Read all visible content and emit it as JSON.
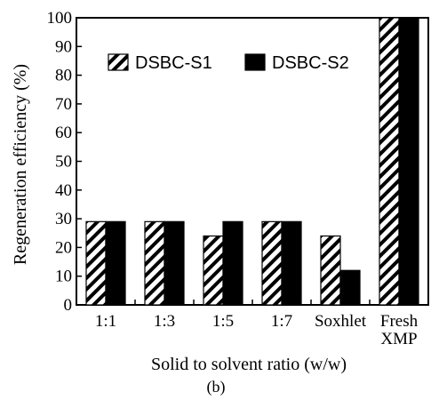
{
  "chart_data": {
    "type": "bar",
    "categories": [
      [
        "1:1"
      ],
      [
        "1:3"
      ],
      [
        "1:5"
      ],
      [
        "1:7"
      ],
      [
        "Soxhlet"
      ],
      [
        "Fresh",
        "XMP"
      ]
    ],
    "series": [
      {
        "name": "DSBC-S1",
        "values": [
          29,
          29,
          24,
          29,
          24,
          100
        ],
        "pattern": "diagonal-hatch",
        "color": "#000000"
      },
      {
        "name": "DSBC-S2",
        "values": [
          29,
          29,
          29,
          29,
          12,
          100
        ],
        "pattern": "solid",
        "color": "#000000"
      }
    ],
    "xlabel": "Solid to solvent ratio (w/w)",
    "ylabel": "Regeneration efficiency (%)",
    "ylim": [
      0,
      100
    ],
    "yticks": [
      0,
      10,
      20,
      30,
      40,
      50,
      60,
      70,
      80,
      90,
      100
    ],
    "grid": false,
    "legend_position": "top-left",
    "panel_label": "(b)"
  }
}
